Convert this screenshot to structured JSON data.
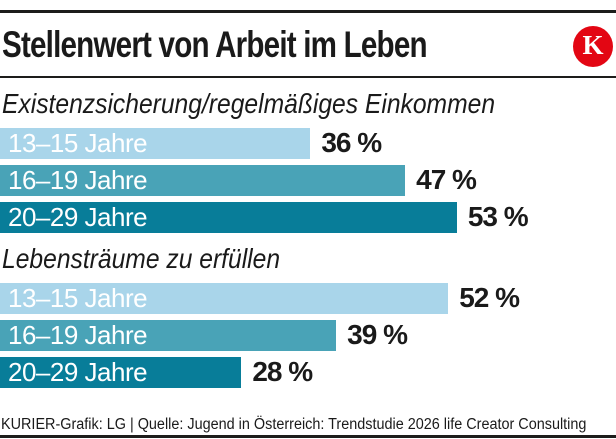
{
  "header": {
    "title": "Stellenwert von Arbeit im Leben",
    "logo_letter": "K"
  },
  "footer": {
    "credit": "KURIER-Grafik: LG | Quelle: Jugend in Österreich: Trendstudie 2026 life Creator Consulting"
  },
  "colors": {
    "bar_age_13_15": "#a9d5ea",
    "bar_age_16_19": "#49a3b7",
    "bar_age_20_29": "#087d99",
    "brand_red": "#e30613",
    "rule": "#1d1d1b",
    "text": "#1a1a1a",
    "bar_label_text": "#ffffff"
  },
  "chart_data": [
    {
      "type": "bar",
      "orientation": "horizontal",
      "title": "Existenzsicherung/regelmäßiges Einkommen",
      "categories": [
        "13–15 Jahre",
        "16–19 Jahre",
        "20–29 Jahre"
      ],
      "values": [
        36,
        47,
        53
      ],
      "value_labels": [
        "36 %",
        "47 %",
        "53 %"
      ],
      "unit": "%",
      "xlim": [
        0,
        71.5
      ],
      "grid": false,
      "legend": false
    },
    {
      "type": "bar",
      "orientation": "horizontal",
      "title": "Lebensträume zu erfüllen",
      "categories": [
        "13–15 Jahre",
        "16–19 Jahre",
        "20–29 Jahre"
      ],
      "values": [
        52,
        39,
        28
      ],
      "value_labels": [
        "52 %",
        "39 %",
        "28 %"
      ],
      "unit": "%",
      "xlim": [
        0,
        71.5
      ],
      "grid": false,
      "legend": false
    }
  ]
}
